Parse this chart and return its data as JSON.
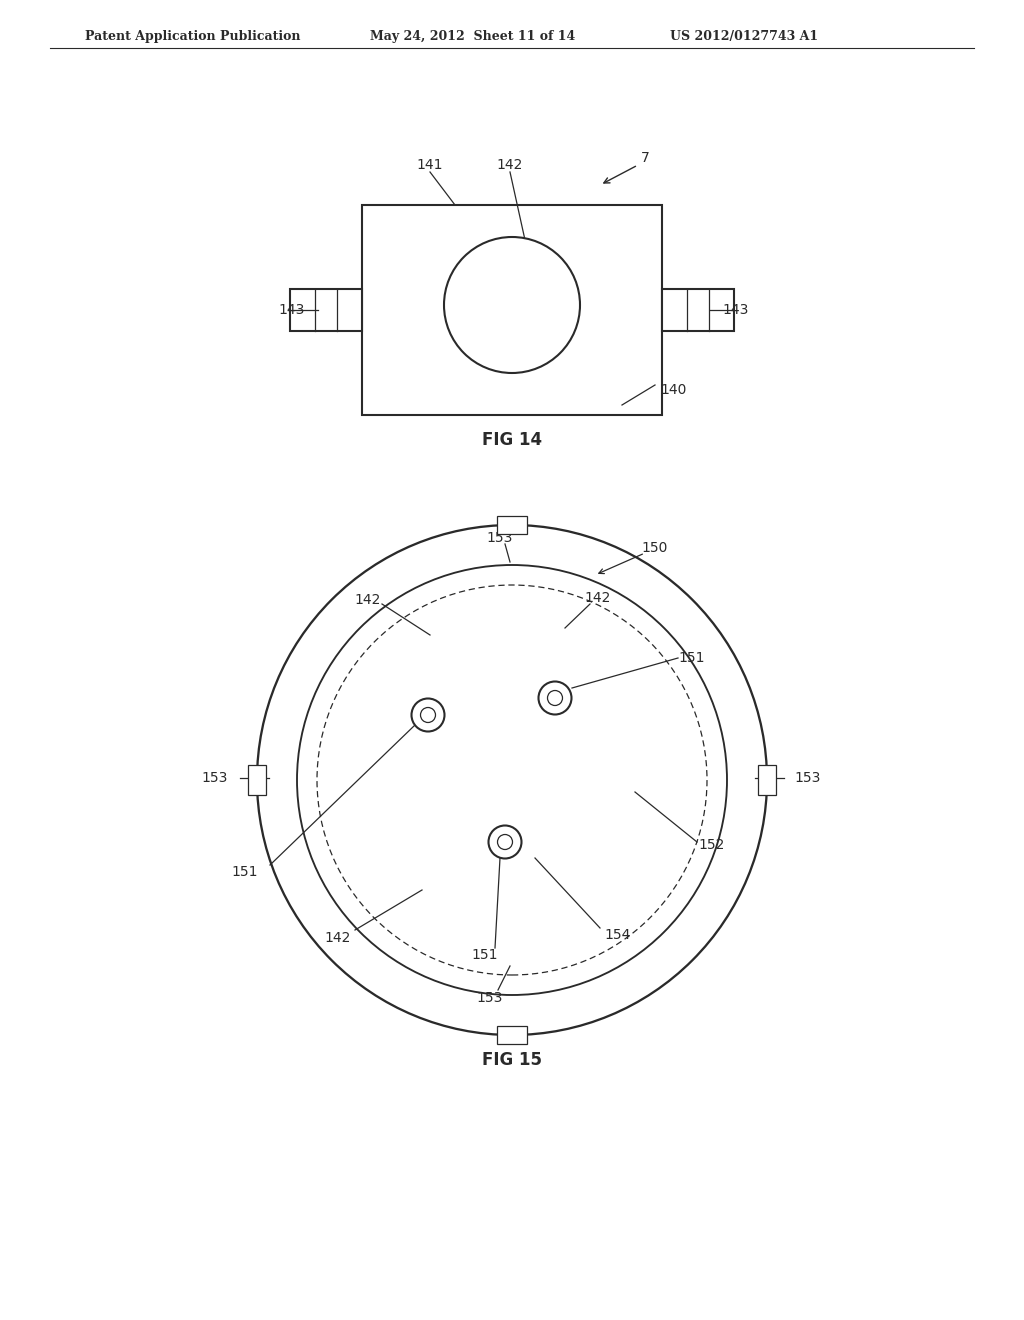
{
  "bg_color": "#ffffff",
  "line_color": "#2a2a2a",
  "header_text": "Patent Application Publication",
  "header_date": "May 24, 2012  Sheet 11 of 14",
  "header_patent": "US 2012/0127743 A1",
  "fig14_caption": "FIG 14",
  "fig15_caption": "FIG 15"
}
